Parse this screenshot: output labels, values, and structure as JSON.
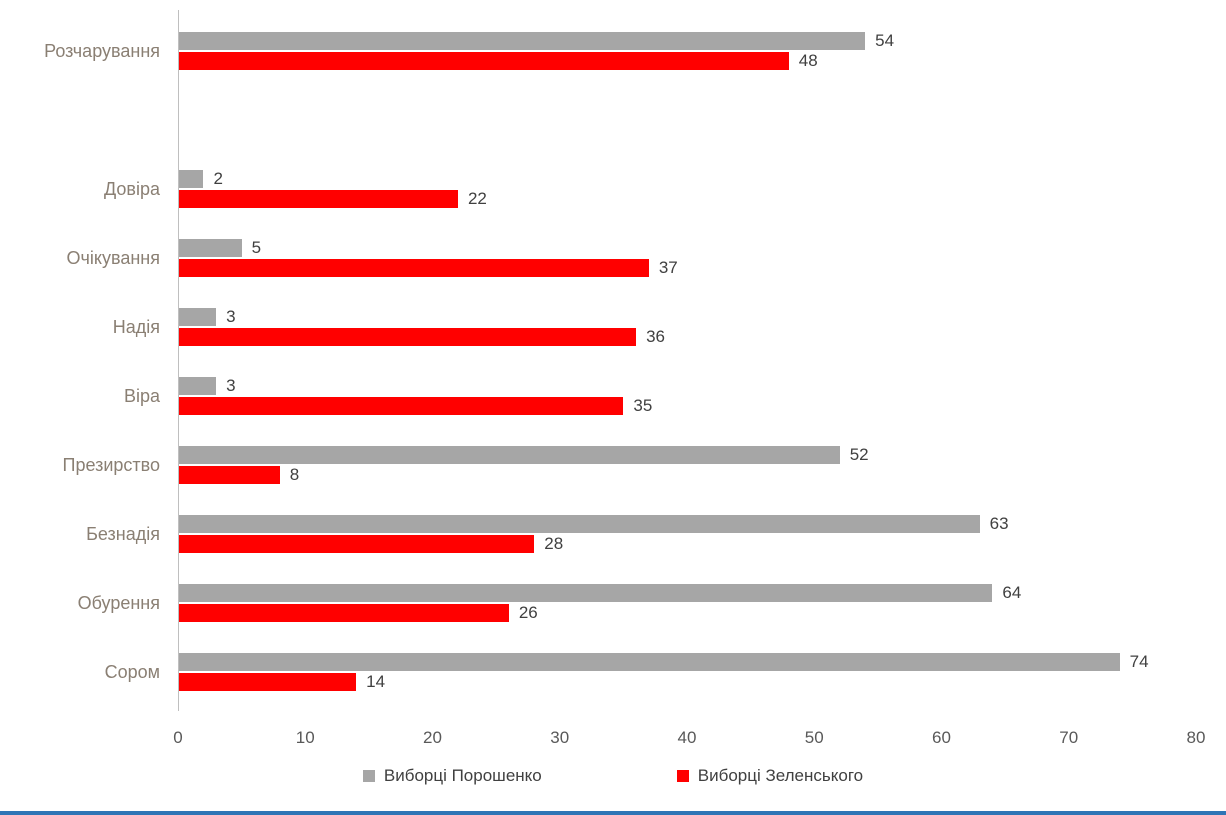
{
  "chart_data": {
    "type": "bar",
    "orientation": "horizontal",
    "categories": [
      "Розчарування",
      "",
      "Довіра",
      "Очікування",
      "Надія",
      "Віра",
      "Презирство",
      "Безнадія",
      "Обурення",
      "Сором"
    ],
    "series": [
      {
        "name": "Виборці Порошенко",
        "color": "#A6A6A6",
        "values": [
          54,
          null,
          2,
          5,
          3,
          3,
          52,
          63,
          64,
          74
        ]
      },
      {
        "name": "Виборці Зеленського",
        "color": "#FF0000",
        "values": [
          48,
          null,
          22,
          37,
          36,
          35,
          8,
          28,
          26,
          14
        ]
      }
    ],
    "title": "",
    "xlabel": "",
    "ylabel": "",
    "xlim": [
      0,
      80
    ],
    "x_ticks": [
      0,
      10,
      20,
      30,
      40,
      50,
      60,
      70,
      80
    ],
    "grid": false,
    "legend_position": "bottom",
    "value_labels": true
  },
  "colors": {
    "poroshenko_series": "#A6A6A6",
    "zelensky_series": "#FF0000",
    "bottom_accent": "#2E75B6",
    "category_label": "#8a7f73",
    "tick_label": "#595959",
    "value_label": "#404040"
  }
}
